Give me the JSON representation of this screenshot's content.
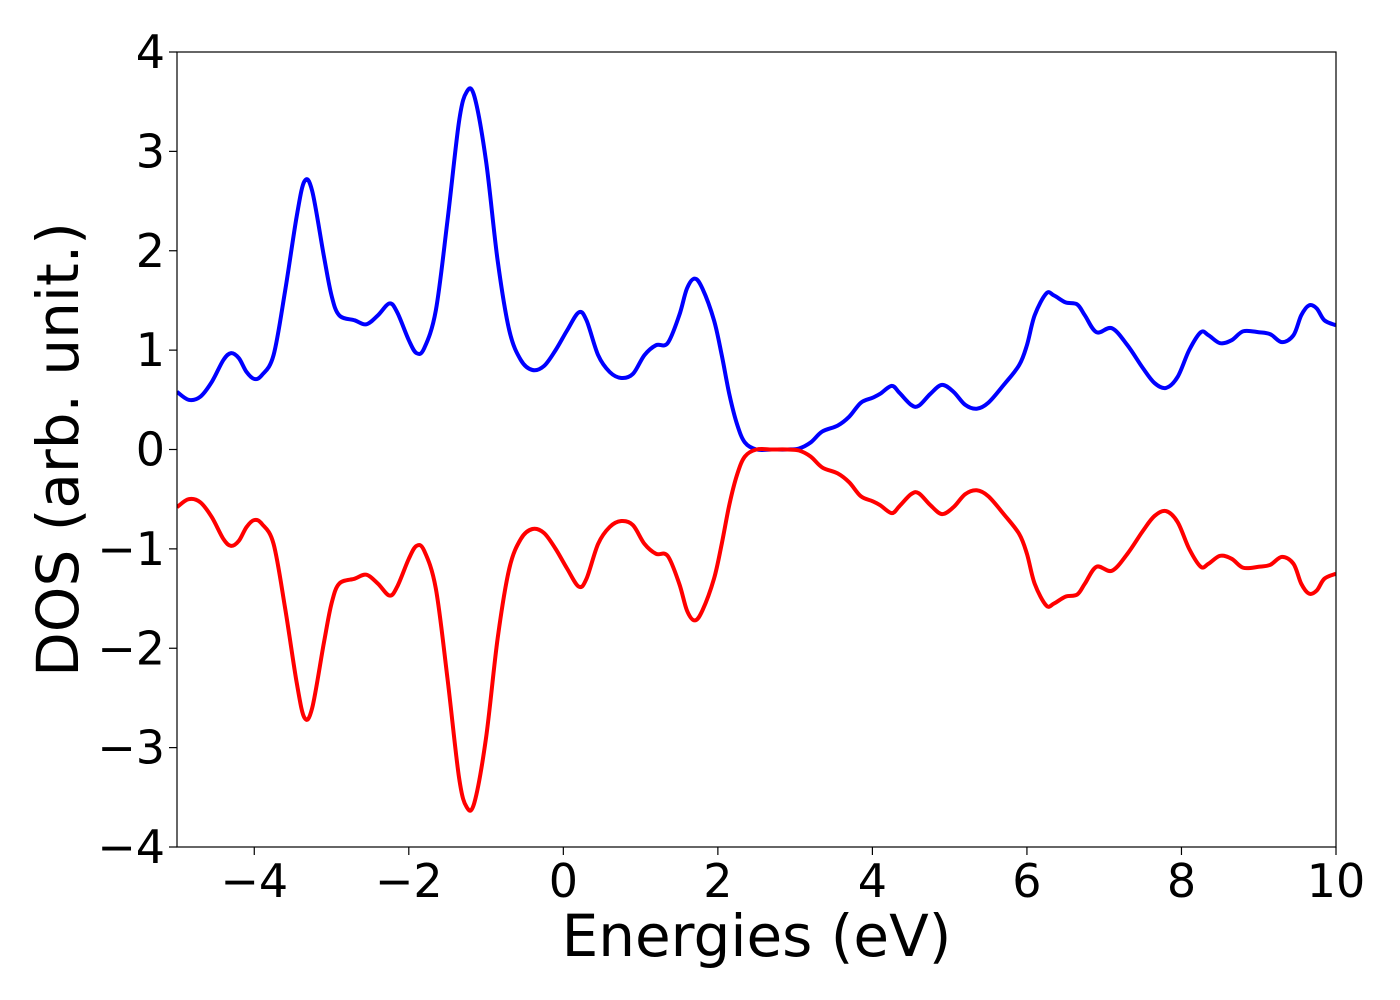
{
  "chart_data": {
    "type": "line",
    "title": "",
    "xlabel": "Energies (eV)",
    "ylabel": "DOS (arb. unit.)",
    "xlim": [
      -5,
      10
    ],
    "ylim": [
      -4,
      4
    ],
    "x_ticks": [
      -4,
      -2,
      0,
      2,
      4,
      6,
      8,
      10
    ],
    "x_tick_labels": [
      "−4",
      "−2",
      "0",
      "2",
      "4",
      "6",
      "8",
      "10"
    ],
    "y_ticks": [
      -4,
      -3,
      -2,
      -1,
      0,
      1,
      2,
      3,
      4
    ],
    "y_tick_labels": [
      "−4",
      "−3",
      "−2",
      "−1",
      "0",
      "1",
      "2",
      "3",
      "4"
    ],
    "grid": false,
    "legend": "none",
    "series": [
      {
        "color": "#0000ff",
        "points": [
          [
            -5.0,
            0.58
          ],
          [
            -4.85,
            0.5
          ],
          [
            -4.7,
            0.53
          ],
          [
            -4.55,
            0.68
          ],
          [
            -4.4,
            0.9
          ],
          [
            -4.3,
            0.97
          ],
          [
            -4.2,
            0.92
          ],
          [
            -4.1,
            0.78
          ],
          [
            -4.0,
            0.71
          ],
          [
            -3.9,
            0.75
          ],
          [
            -3.75,
            0.95
          ],
          [
            -3.6,
            1.6
          ],
          [
            -3.45,
            2.35
          ],
          [
            -3.35,
            2.7
          ],
          [
            -3.25,
            2.6
          ],
          [
            -3.1,
            1.95
          ],
          [
            -3.0,
            1.55
          ],
          [
            -2.9,
            1.35
          ],
          [
            -2.7,
            1.3
          ],
          [
            -2.55,
            1.26
          ],
          [
            -2.4,
            1.35
          ],
          [
            -2.25,
            1.47
          ],
          [
            -2.15,
            1.38
          ],
          [
            -2.0,
            1.1
          ],
          [
            -1.9,
            0.97
          ],
          [
            -1.8,
            1.02
          ],
          [
            -1.65,
            1.4
          ],
          [
            -1.5,
            2.3
          ],
          [
            -1.35,
            3.3
          ],
          [
            -1.25,
            3.6
          ],
          [
            -1.15,
            3.55
          ],
          [
            -1.0,
            2.9
          ],
          [
            -0.85,
            1.9
          ],
          [
            -0.7,
            1.2
          ],
          [
            -0.55,
            0.9
          ],
          [
            -0.4,
            0.8
          ],
          [
            -0.25,
            0.84
          ],
          [
            -0.1,
            1.0
          ],
          [
            0.05,
            1.2
          ],
          [
            0.2,
            1.38
          ],
          [
            0.3,
            1.3
          ],
          [
            0.45,
            0.95
          ],
          [
            0.6,
            0.78
          ],
          [
            0.75,
            0.72
          ],
          [
            0.9,
            0.76
          ],
          [
            1.05,
            0.95
          ],
          [
            1.2,
            1.05
          ],
          [
            1.35,
            1.07
          ],
          [
            1.5,
            1.35
          ],
          [
            1.6,
            1.62
          ],
          [
            1.7,
            1.72
          ],
          [
            1.8,
            1.62
          ],
          [
            1.95,
            1.3
          ],
          [
            2.05,
            0.95
          ],
          [
            2.15,
            0.55
          ],
          [
            2.25,
            0.25
          ],
          [
            2.35,
            0.07
          ],
          [
            2.5,
            0.0
          ],
          [
            2.7,
            0.0
          ],
          [
            2.9,
            0.0
          ],
          [
            3.05,
            0.01
          ],
          [
            3.2,
            0.07
          ],
          [
            3.35,
            0.18
          ],
          [
            3.55,
            0.24
          ],
          [
            3.7,
            0.33
          ],
          [
            3.85,
            0.47
          ],
          [
            4.0,
            0.52
          ],
          [
            4.1,
            0.56
          ],
          [
            4.25,
            0.64
          ],
          [
            4.35,
            0.57
          ],
          [
            4.5,
            0.45
          ],
          [
            4.6,
            0.44
          ],
          [
            4.75,
            0.56
          ],
          [
            4.9,
            0.65
          ],
          [
            5.05,
            0.58
          ],
          [
            5.2,
            0.45
          ],
          [
            5.35,
            0.41
          ],
          [
            5.5,
            0.47
          ],
          [
            5.7,
            0.65
          ],
          [
            5.9,
            0.85
          ],
          [
            6.0,
            1.05
          ],
          [
            6.1,
            1.35
          ],
          [
            6.25,
            1.57
          ],
          [
            6.35,
            1.55
          ],
          [
            6.5,
            1.48
          ],
          [
            6.65,
            1.46
          ],
          [
            6.75,
            1.35
          ],
          [
            6.9,
            1.18
          ],
          [
            7.1,
            1.22
          ],
          [
            7.3,
            1.05
          ],
          [
            7.5,
            0.82
          ],
          [
            7.65,
            0.67
          ],
          [
            7.8,
            0.62
          ],
          [
            7.95,
            0.73
          ],
          [
            8.1,
            1.0
          ],
          [
            8.25,
            1.18
          ],
          [
            8.35,
            1.15
          ],
          [
            8.5,
            1.07
          ],
          [
            8.65,
            1.1
          ],
          [
            8.8,
            1.19
          ],
          [
            9.0,
            1.18
          ],
          [
            9.15,
            1.16
          ],
          [
            9.3,
            1.08
          ],
          [
            9.45,
            1.15
          ],
          [
            9.55,
            1.35
          ],
          [
            9.65,
            1.45
          ],
          [
            9.75,
            1.42
          ],
          [
            9.85,
            1.3
          ],
          [
            10.0,
            1.25
          ]
        ]
      },
      {
        "color": "#ff0000",
        "mirror_of": 0
      }
    ]
  }
}
